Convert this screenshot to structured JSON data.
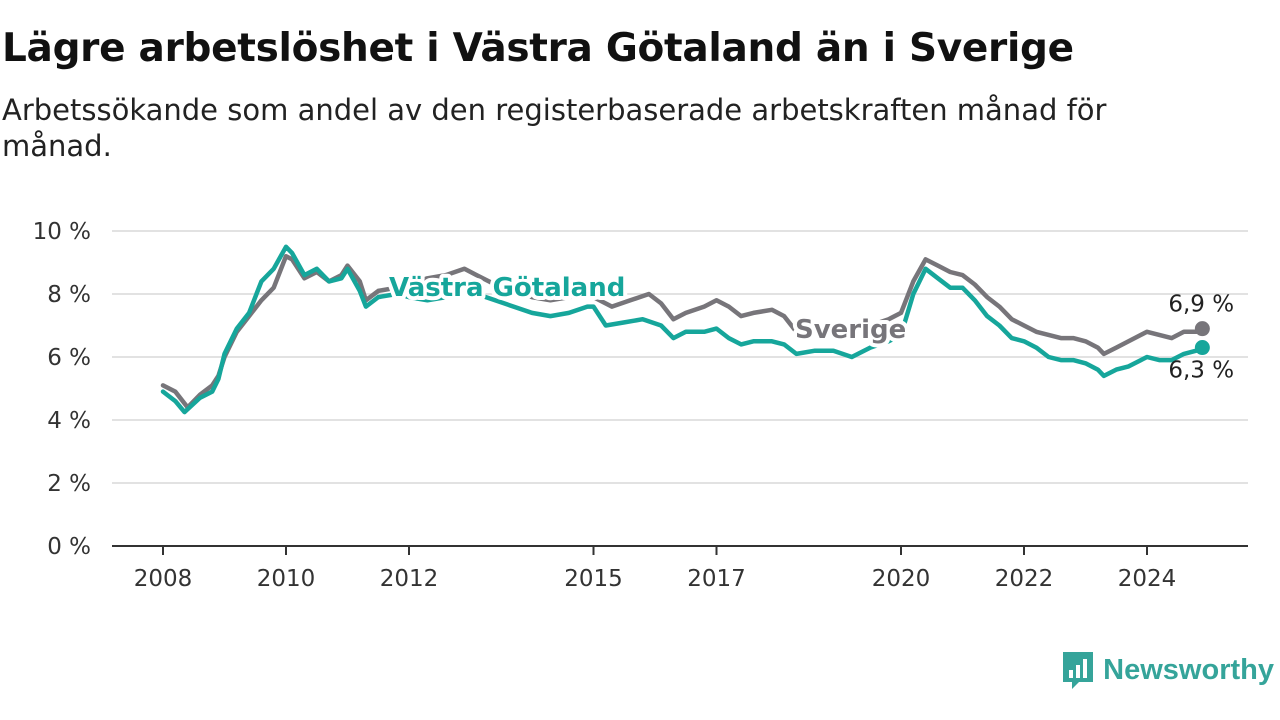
{
  "header": {
    "title": "Lägre arbetslöshet i Västra Götaland än i Sverige",
    "subtitle": "Arbetssökande som andel av den registerbaserade arbetskraften månad för månad."
  },
  "brand": {
    "name": "Newsworthy",
    "icon": "newsworthy-logo-icon",
    "color": "#35a49a"
  },
  "chart_data": {
    "type": "line",
    "title": "Lägre arbetslöshet i Västra Götaland än i Sverige",
    "subtitle": "Arbetssökande som andel av den registerbaserade arbetskraften månad för månad.",
    "xlabel": "",
    "ylabel": "",
    "x_ticks": [
      "2008",
      "2010",
      "2012",
      "2015",
      "2017",
      "2020",
      "2022",
      "2024"
    ],
    "x_tick_dates": [
      2008.0,
      2010.0,
      2012.0,
      2015.0,
      2017.0,
      2020.0,
      2022.0,
      2024.0
    ],
    "y_ticks": [
      "0 %",
      "2 %",
      "4 %",
      "6 %",
      "8 %",
      "10 %"
    ],
    "y_tick_values": [
      0,
      2,
      4,
      6,
      8,
      10
    ],
    "xlim": [
      2007.2,
      2025.7
    ],
    "ylim": [
      0,
      10
    ],
    "grid": "horizontal",
    "legend": "inline labels",
    "series": [
      {
        "name": "Sverige",
        "color": "#77757a",
        "end_label": "6,9 %",
        "points": [
          [
            2008.0,
            5.1
          ],
          [
            2008.2,
            4.9
          ],
          [
            2008.4,
            4.4
          ],
          [
            2008.6,
            4.8
          ],
          [
            2008.8,
            5.1
          ],
          [
            2008.9,
            5.4
          ],
          [
            2009.0,
            6.0
          ],
          [
            2009.2,
            6.8
          ],
          [
            2009.4,
            7.3
          ],
          [
            2009.6,
            7.8
          ],
          [
            2009.8,
            8.2
          ],
          [
            2010.0,
            9.2
          ],
          [
            2010.1,
            9.1
          ],
          [
            2010.3,
            8.5
          ],
          [
            2010.5,
            8.7
          ],
          [
            2010.7,
            8.4
          ],
          [
            2010.9,
            8.6
          ],
          [
            2011.0,
            8.9
          ],
          [
            2011.2,
            8.4
          ],
          [
            2011.3,
            7.8
          ],
          [
            2011.5,
            8.1
          ],
          [
            2011.8,
            8.2
          ],
          [
            2012.0,
            8.3
          ],
          [
            2012.3,
            8.5
          ],
          [
            2012.6,
            8.6
          ],
          [
            2012.9,
            8.8
          ],
          [
            2013.1,
            8.6
          ],
          [
            2013.4,
            8.3
          ],
          [
            2013.7,
            8.1
          ],
          [
            2014.0,
            7.9
          ],
          [
            2014.3,
            7.8
          ],
          [
            2014.6,
            7.9
          ],
          [
            2014.9,
            8.0
          ],
          [
            2015.0,
            7.9
          ],
          [
            2015.3,
            7.6
          ],
          [
            2015.6,
            7.8
          ],
          [
            2015.9,
            8.0
          ],
          [
            2016.1,
            7.7
          ],
          [
            2016.3,
            7.2
          ],
          [
            2016.5,
            7.4
          ],
          [
            2016.8,
            7.6
          ],
          [
            2017.0,
            7.8
          ],
          [
            2017.2,
            7.6
          ],
          [
            2017.4,
            7.3
          ],
          [
            2017.6,
            7.4
          ],
          [
            2017.9,
            7.5
          ],
          [
            2018.1,
            7.3
          ],
          [
            2018.3,
            6.8
          ],
          [
            2018.6,
            6.8
          ],
          [
            2018.9,
            6.9
          ],
          [
            2019.2,
            6.9
          ],
          [
            2019.5,
            7.0
          ],
          [
            2019.8,
            7.2
          ],
          [
            2020.0,
            7.4
          ],
          [
            2020.2,
            8.4
          ],
          [
            2020.4,
            9.1
          ],
          [
            2020.6,
            8.9
          ],
          [
            2020.8,
            8.7
          ],
          [
            2021.0,
            8.6
          ],
          [
            2021.2,
            8.3
          ],
          [
            2021.4,
            7.9
          ],
          [
            2021.6,
            7.6
          ],
          [
            2021.8,
            7.2
          ],
          [
            2022.0,
            7.0
          ],
          [
            2022.2,
            6.8
          ],
          [
            2022.4,
            6.7
          ],
          [
            2022.6,
            6.6
          ],
          [
            2022.8,
            6.6
          ],
          [
            2023.0,
            6.5
          ],
          [
            2023.2,
            6.3
          ],
          [
            2023.3,
            6.1
          ],
          [
            2023.5,
            6.3
          ],
          [
            2023.7,
            6.5
          ],
          [
            2023.9,
            6.7
          ],
          [
            2024.0,
            6.8
          ],
          [
            2024.2,
            6.7
          ],
          [
            2024.4,
            6.6
          ],
          [
            2024.6,
            6.8
          ],
          [
            2024.8,
            6.8
          ],
          [
            2024.9,
            6.9
          ]
        ]
      },
      {
        "name": "Västra Götaland",
        "color": "#16a69b",
        "end_label": "6,3 %",
        "points": [
          [
            2008.0,
            4.9
          ],
          [
            2008.2,
            4.6
          ],
          [
            2008.35,
            4.25
          ],
          [
            2008.6,
            4.7
          ],
          [
            2008.8,
            4.9
          ],
          [
            2008.9,
            5.3
          ],
          [
            2009.0,
            6.1
          ],
          [
            2009.2,
            6.9
          ],
          [
            2009.4,
            7.4
          ],
          [
            2009.6,
            8.4
          ],
          [
            2009.8,
            8.8
          ],
          [
            2010.0,
            9.5
          ],
          [
            2010.1,
            9.3
          ],
          [
            2010.3,
            8.6
          ],
          [
            2010.5,
            8.8
          ],
          [
            2010.7,
            8.4
          ],
          [
            2010.9,
            8.5
          ],
          [
            2011.0,
            8.8
          ],
          [
            2011.2,
            8.1
          ],
          [
            2011.3,
            7.6
          ],
          [
            2011.5,
            7.9
          ],
          [
            2011.8,
            8.0
          ],
          [
            2012.0,
            7.9
          ],
          [
            2012.3,
            7.8
          ],
          [
            2012.6,
            7.9
          ],
          [
            2012.9,
            8.2
          ],
          [
            2013.1,
            8.0
          ],
          [
            2013.4,
            7.8
          ],
          [
            2013.7,
            7.6
          ],
          [
            2014.0,
            7.4
          ],
          [
            2014.3,
            7.3
          ],
          [
            2014.6,
            7.4
          ],
          [
            2014.9,
            7.6
          ],
          [
            2015.0,
            7.6
          ],
          [
            2015.2,
            7.0
          ],
          [
            2015.5,
            7.1
          ],
          [
            2015.8,
            7.2
          ],
          [
            2016.1,
            7.0
          ],
          [
            2016.3,
            6.6
          ],
          [
            2016.5,
            6.8
          ],
          [
            2016.8,
            6.8
          ],
          [
            2017.0,
            6.9
          ],
          [
            2017.2,
            6.6
          ],
          [
            2017.4,
            6.4
          ],
          [
            2017.6,
            6.5
          ],
          [
            2017.9,
            6.5
          ],
          [
            2018.1,
            6.4
          ],
          [
            2018.3,
            6.1
          ],
          [
            2018.6,
            6.2
          ],
          [
            2018.9,
            6.2
          ],
          [
            2019.2,
            6.0
          ],
          [
            2019.5,
            6.3
          ],
          [
            2019.8,
            6.5
          ],
          [
            2020.0,
            6.7
          ],
          [
            2020.2,
            8.0
          ],
          [
            2020.4,
            8.8
          ],
          [
            2020.6,
            8.5
          ],
          [
            2020.8,
            8.2
          ],
          [
            2021.0,
            8.2
          ],
          [
            2021.2,
            7.8
          ],
          [
            2021.4,
            7.3
          ],
          [
            2021.6,
            7.0
          ],
          [
            2021.8,
            6.6
          ],
          [
            2022.0,
            6.5
          ],
          [
            2022.2,
            6.3
          ],
          [
            2022.4,
            6.0
          ],
          [
            2022.6,
            5.9
          ],
          [
            2022.8,
            5.9
          ],
          [
            2023.0,
            5.8
          ],
          [
            2023.2,
            5.6
          ],
          [
            2023.3,
            5.4
          ],
          [
            2023.5,
            5.6
          ],
          [
            2023.7,
            5.7
          ],
          [
            2023.9,
            5.9
          ],
          [
            2024.0,
            6.0
          ],
          [
            2024.2,
            5.9
          ],
          [
            2024.4,
            5.9
          ],
          [
            2024.6,
            6.1
          ],
          [
            2024.8,
            6.2
          ],
          [
            2024.9,
            6.3
          ]
        ]
      }
    ]
  }
}
